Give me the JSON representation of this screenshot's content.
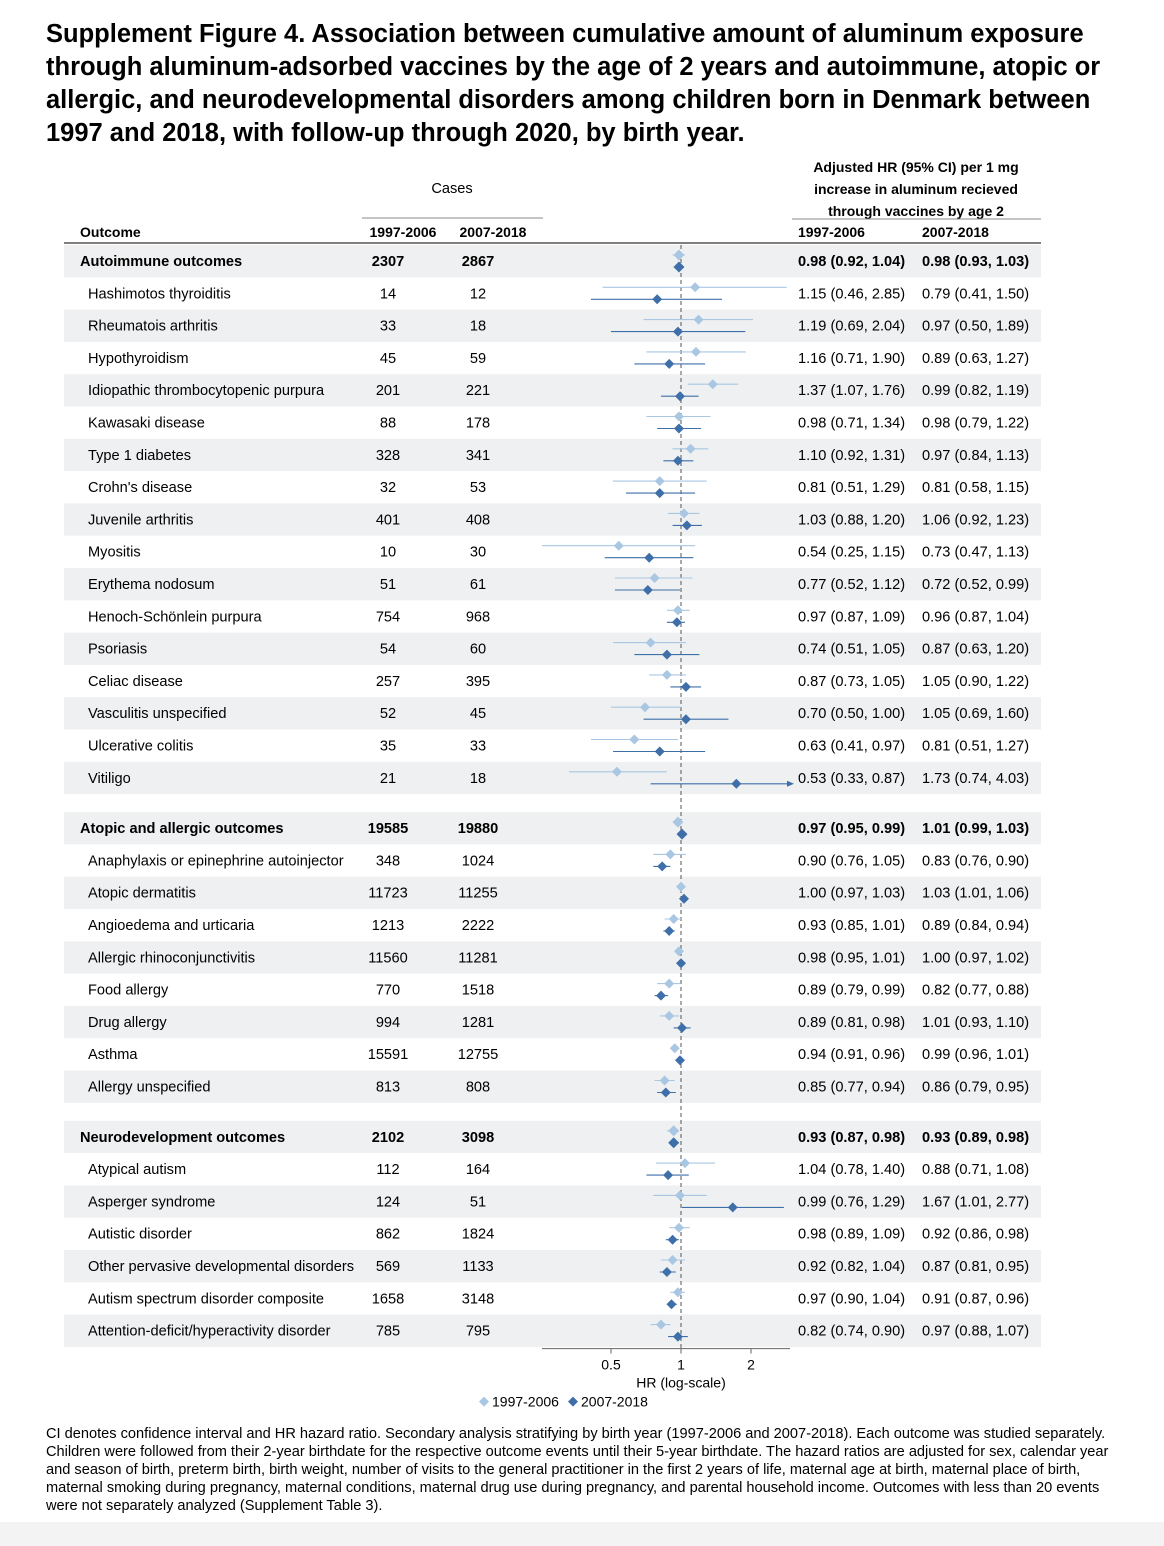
{
  "figure": {
    "title": "Supplement Figure 4. Association between cumulative amount of aluminum exposure through aluminum-adsorbed vaccines by the age of 2 years and autoimmune, atopic or allergic, and neurodevelopmental disorders among children born in Denmark between 1997 and 2018, with follow-up through 2020, by birth year.",
    "caption": "CI denotes confidence interval and HR hazard ratio. Secondary analysis stratifying by birth year (1997-2006 and 2007-2018). Each outcome was studied separately. Children were followed from their 2-year birthdate for the respective outcome events until their 5-year birthdate. The hazard ratios are adjusted for sex, calendar year and season of birth, preterm birth, birth weight, number of visits to the general practitioner in the first 2 years of life, maternal age at birth, maternal place of birth, maternal smoking during pregnancy, maternal conditions, maternal drug use during pregnancy, and parental household income. Outcomes with less than 20 events were not separately analyzed (Supplement Table 3)."
  },
  "chart_data": {
    "type": "forest",
    "headers": {
      "outcome": "Outcome",
      "cases": "Cases",
      "hr_lines": [
        "Adjusted HR (95% CI) per 1 mg",
        "increase in aluminum recieved",
        "through vaccines by age 2"
      ],
      "period_a": "1997-2006",
      "period_b": "2007-2018"
    },
    "xlabel": "HR (log-scale)",
    "xscale": "log",
    "xticks": [
      0.5,
      1,
      2
    ],
    "xtick_labels": [
      "0.5",
      "1",
      "2"
    ],
    "xlim": [
      0.4,
      2.8
    ],
    "reference_line": 1,
    "legend": [
      "1997-2006",
      "2007-2018"
    ],
    "legend_position": "bottom",
    "series_colors": [
      "#a9c7e3",
      "#3f6fa8"
    ],
    "groups": [
      {
        "name": "Autoimmune outcomes",
        "cases_a": "2307",
        "cases_b": "2867",
        "ci_a": "0.98 (0.92, 1.04)",
        "ci_b": "0.98 (0.93, 1.03)",
        "hr_a": [
          0.98,
          0.92,
          1.04
        ],
        "hr_b": [
          0.98,
          0.93,
          1.03
        ],
        "rows": [
          {
            "name": "Hashimotos thyroiditis",
            "cases_a": "14",
            "cases_b": "12",
            "ci_a": "1.15 (0.46, 2.85)",
            "ci_b": "0.79 (0.41, 1.50)",
            "hr_a": [
              1.15,
              0.46,
              2.85
            ],
            "hr_b": [
              0.79,
              0.41,
              1.5
            ]
          },
          {
            "name": "Rheumatois arthritis",
            "cases_a": "33",
            "cases_b": "18",
            "ci_a": "1.19 (0.69, 2.04)",
            "ci_b": "0.97 (0.50, 1.89)",
            "hr_a": [
              1.19,
              0.69,
              2.04
            ],
            "hr_b": [
              0.97,
              0.5,
              1.89
            ]
          },
          {
            "name": "Hypothyroidism",
            "cases_a": "45",
            "cases_b": "59",
            "ci_a": "1.16 (0.71, 1.90)",
            "ci_b": "0.89 (0.63, 1.27)",
            "hr_a": [
              1.16,
              0.71,
              1.9
            ],
            "hr_b": [
              0.89,
              0.63,
              1.27
            ]
          },
          {
            "name": "Idiopathic thrombocytopenic purpura",
            "cases_a": "201",
            "cases_b": "221",
            "ci_a": "1.37 (1.07, 1.76)",
            "ci_b": "0.99 (0.82, 1.19)",
            "hr_a": [
              1.37,
              1.07,
              1.76
            ],
            "hr_b": [
              0.99,
              0.82,
              1.19
            ]
          },
          {
            "name": "Kawasaki disease",
            "cases_a": "88",
            "cases_b": "178",
            "ci_a": "0.98 (0.71, 1.34)",
            "ci_b": "0.98 (0.79, 1.22)",
            "hr_a": [
              0.98,
              0.71,
              1.34
            ],
            "hr_b": [
              0.98,
              0.79,
              1.22
            ]
          },
          {
            "name": "Type 1 diabetes",
            "cases_a": "328",
            "cases_b": "341",
            "ci_a": "1.10 (0.92, 1.31)",
            "ci_b": "0.97 (0.84, 1.13)",
            "hr_a": [
              1.1,
              0.92,
              1.31
            ],
            "hr_b": [
              0.97,
              0.84,
              1.13
            ]
          },
          {
            "name": "Crohn's disease",
            "cases_a": "32",
            "cases_b": "53",
            "ci_a": "0.81 (0.51, 1.29)",
            "ci_b": "0.81 (0.58, 1.15)",
            "hr_a": [
              0.81,
              0.51,
              1.29
            ],
            "hr_b": [
              0.81,
              0.58,
              1.15
            ]
          },
          {
            "name": "Juvenile arthritis",
            "cases_a": "401",
            "cases_b": "408",
            "ci_a": "1.03 (0.88, 1.20)",
            "ci_b": "1.06 (0.92, 1.23)",
            "hr_a": [
              1.03,
              0.88,
              1.2
            ],
            "hr_b": [
              1.06,
              0.92,
              1.23
            ]
          },
          {
            "name": "Myositis",
            "cases_a": "10",
            "cases_b": "30",
            "ci_a": "0.54 (0.25, 1.15)",
            "ci_b": "0.73 (0.47, 1.13)",
            "hr_a": [
              0.54,
              0.25,
              1.15
            ],
            "hr_b": [
              0.73,
              0.47,
              1.13
            ]
          },
          {
            "name": "Erythema nodosum",
            "cases_a": "51",
            "cases_b": "61",
            "ci_a": "0.77 (0.52, 1.12)",
            "ci_b": "0.72 (0.52, 0.99)",
            "hr_a": [
              0.77,
              0.52,
              1.12
            ],
            "hr_b": [
              0.72,
              0.52,
              0.99
            ]
          },
          {
            "name": "Henoch-Schönlein purpura",
            "cases_a": "754",
            "cases_b": "968",
            "ci_a": "0.97 (0.87, 1.09)",
            "ci_b": "0.96 (0.87, 1.04)",
            "hr_a": [
              0.97,
              0.87,
              1.09
            ],
            "hr_b": [
              0.96,
              0.87,
              1.04
            ]
          },
          {
            "name": "Psoriasis",
            "cases_a": "54",
            "cases_b": "60",
            "ci_a": "0.74 (0.51, 1.05)",
            "ci_b": "0.87 (0.63, 1.20)",
            "hr_a": [
              0.74,
              0.51,
              1.05
            ],
            "hr_b": [
              0.87,
              0.63,
              1.2
            ]
          },
          {
            "name": "Celiac disease",
            "cases_a": "257",
            "cases_b": "395",
            "ci_a": "0.87 (0.73, 1.05)",
            "ci_b": "1.05 (0.90, 1.22)",
            "hr_a": [
              0.87,
              0.73,
              1.05
            ],
            "hr_b": [
              1.05,
              0.9,
              1.22
            ]
          },
          {
            "name": "Vasculitis unspecified",
            "cases_a": "52",
            "cases_b": "45",
            "ci_a": "0.70 (0.50, 1.00)",
            "ci_b": "1.05 (0.69, 1.60)",
            "hr_a": [
              0.7,
              0.5,
              1.0
            ],
            "hr_b": [
              1.05,
              0.69,
              1.6
            ]
          },
          {
            "name": "Ulcerative colitis",
            "cases_a": "35",
            "cases_b": "33",
            "ci_a": "0.63 (0.41, 0.97)",
            "ci_b": "0.81 (0.51, 1.27)",
            "hr_a": [
              0.63,
              0.41,
              0.97
            ],
            "hr_b": [
              0.81,
              0.51,
              1.27
            ]
          },
          {
            "name": "Vitiligo",
            "cases_a": "21",
            "cases_b": "18",
            "ci_a": "0.53 (0.33, 0.87)",
            "ci_b": "1.73 (0.74, 4.03)",
            "hr_a": [
              0.53,
              0.33,
              0.87
            ],
            "hr_b": [
              1.73,
              0.74,
              4.03
            ]
          }
        ]
      },
      {
        "name": "Atopic and allergic outcomes",
        "cases_a": "19585",
        "cases_b": "19880",
        "ci_a": "0.97 (0.95, 0.99)",
        "ci_b": "1.01 (0.99, 1.03)",
        "hr_a": [
          0.97,
          0.95,
          0.99
        ],
        "hr_b": [
          1.01,
          0.99,
          1.03
        ],
        "rows": [
          {
            "name": "Anaphylaxis or epinephrine autoinjector",
            "cases_a": "348",
            "cases_b": "1024",
            "ci_a": "0.90 (0.76, 1.05)",
            "ci_b": "0.83 (0.76, 0.90)",
            "hr_a": [
              0.9,
              0.76,
              1.05
            ],
            "hr_b": [
              0.83,
              0.76,
              0.9
            ]
          },
          {
            "name": "Atopic dermatitis",
            "cases_a": "11723",
            "cases_b": "11255",
            "ci_a": "1.00 (0.97, 1.03)",
            "ci_b": "1.03 (1.01, 1.06)",
            "hr_a": [
              1.0,
              0.97,
              1.03
            ],
            "hr_b": [
              1.03,
              1.01,
              1.06
            ]
          },
          {
            "name": "Angioedema and urticaria",
            "cases_a": "1213",
            "cases_b": "2222",
            "ci_a": "0.93 (0.85, 1.01)",
            "ci_b": "0.89 (0.84, 0.94)",
            "hr_a": [
              0.93,
              0.85,
              1.01
            ],
            "hr_b": [
              0.89,
              0.84,
              0.94
            ]
          },
          {
            "name": "Allergic rhinoconjunctivitis",
            "cases_a": "11560",
            "cases_b": "11281",
            "ci_a": "0.98 (0.95, 1.01)",
            "ci_b": "1.00 (0.97, 1.02)",
            "hr_a": [
              0.98,
              0.95,
              1.01
            ],
            "hr_b": [
              1.0,
              0.97,
              1.02
            ]
          },
          {
            "name": "Food allergy",
            "cases_a": "770",
            "cases_b": "1518",
            "ci_a": "0.89 (0.79, 0.99)",
            "ci_b": "0.82 (0.77, 0.88)",
            "hr_a": [
              0.89,
              0.79,
              0.99
            ],
            "hr_b": [
              0.82,
              0.77,
              0.88
            ]
          },
          {
            "name": "Drug allergy",
            "cases_a": "994",
            "cases_b": "1281",
            "ci_a": "0.89 (0.81, 0.98)",
            "ci_b": "1.01 (0.93, 1.10)",
            "hr_a": [
              0.89,
              0.81,
              0.98
            ],
            "hr_b": [
              1.01,
              0.93,
              1.1
            ]
          },
          {
            "name": "Asthma",
            "cases_a": "15591",
            "cases_b": "12755",
            "ci_a": "0.94 (0.91, 0.96)",
            "ci_b": "0.99 (0.96, 1.01)",
            "hr_a": [
              0.94,
              0.91,
              0.96
            ],
            "hr_b": [
              0.99,
              0.96,
              1.01
            ]
          },
          {
            "name": "Allergy unspecified",
            "cases_a": "813",
            "cases_b": "808",
            "ci_a": "0.85 (0.77, 0.94)",
            "ci_b": "0.86 (0.79, 0.95)",
            "hr_a": [
              0.85,
              0.77,
              0.94
            ],
            "hr_b": [
              0.86,
              0.79,
              0.95
            ]
          }
        ]
      },
      {
        "name": "Neurodevelopment outcomes",
        "cases_a": "2102",
        "cases_b": "3098",
        "ci_a": "0.93 (0.87, 0.98)",
        "ci_b": "0.93 (0.89, 0.98)",
        "hr_a": [
          0.93,
          0.87,
          0.98
        ],
        "hr_b": [
          0.93,
          0.89,
          0.98
        ],
        "rows": [
          {
            "name": "Atypical autism",
            "cases_a": "112",
            "cases_b": "164",
            "ci_a": "1.04 (0.78, 1.40)",
            "ci_b": "0.88 (0.71, 1.08)",
            "hr_a": [
              1.04,
              0.78,
              1.4
            ],
            "hr_b": [
              0.88,
              0.71,
              1.08
            ]
          },
          {
            "name": "Asperger syndrome",
            "cases_a": "124",
            "cases_b": "51",
            "ci_a": "0.99 (0.76, 1.29)",
            "ci_b": "1.67 (1.01, 2.77)",
            "hr_a": [
              0.99,
              0.76,
              1.29
            ],
            "hr_b": [
              1.67,
              1.01,
              2.77
            ]
          },
          {
            "name": "Autistic disorder",
            "cases_a": "862",
            "cases_b": "1824",
            "ci_a": "0.98 (0.89, 1.09)",
            "ci_b": "0.92 (0.86, 0.98)",
            "hr_a": [
              0.98,
              0.89,
              1.09
            ],
            "hr_b": [
              0.92,
              0.86,
              0.98
            ]
          },
          {
            "name": "Other pervasive developmental disorders",
            "cases_a": "569",
            "cases_b": "1133",
            "ci_a": "0.92 (0.82, 1.04)",
            "ci_b": "0.87 (0.81, 0.95)",
            "hr_a": [
              0.92,
              0.82,
              1.04
            ],
            "hr_b": [
              0.87,
              0.81,
              0.95
            ]
          },
          {
            "name": "Autism spectrum disorder composite",
            "cases_a": "1658",
            "cases_b": "3148",
            "ci_a": "0.97 (0.90, 1.04)",
            "ci_b": "0.91 (0.87, 0.96)",
            "hr_a": [
              0.97,
              0.9,
              1.04
            ],
            "hr_b": [
              0.91,
              0.87,
              0.96
            ]
          },
          {
            "name": "Attention-deficit/hyperactivity disorder",
            "cases_a": "785",
            "cases_b": "795",
            "ci_a": "0.82 (0.74, 0.90)",
            "ci_b": "0.97 (0.88, 1.07)",
            "hr_a": [
              0.82,
              0.74,
              0.9
            ],
            "hr_b": [
              0.97,
              0.88,
              1.07
            ]
          }
        ]
      }
    ]
  }
}
